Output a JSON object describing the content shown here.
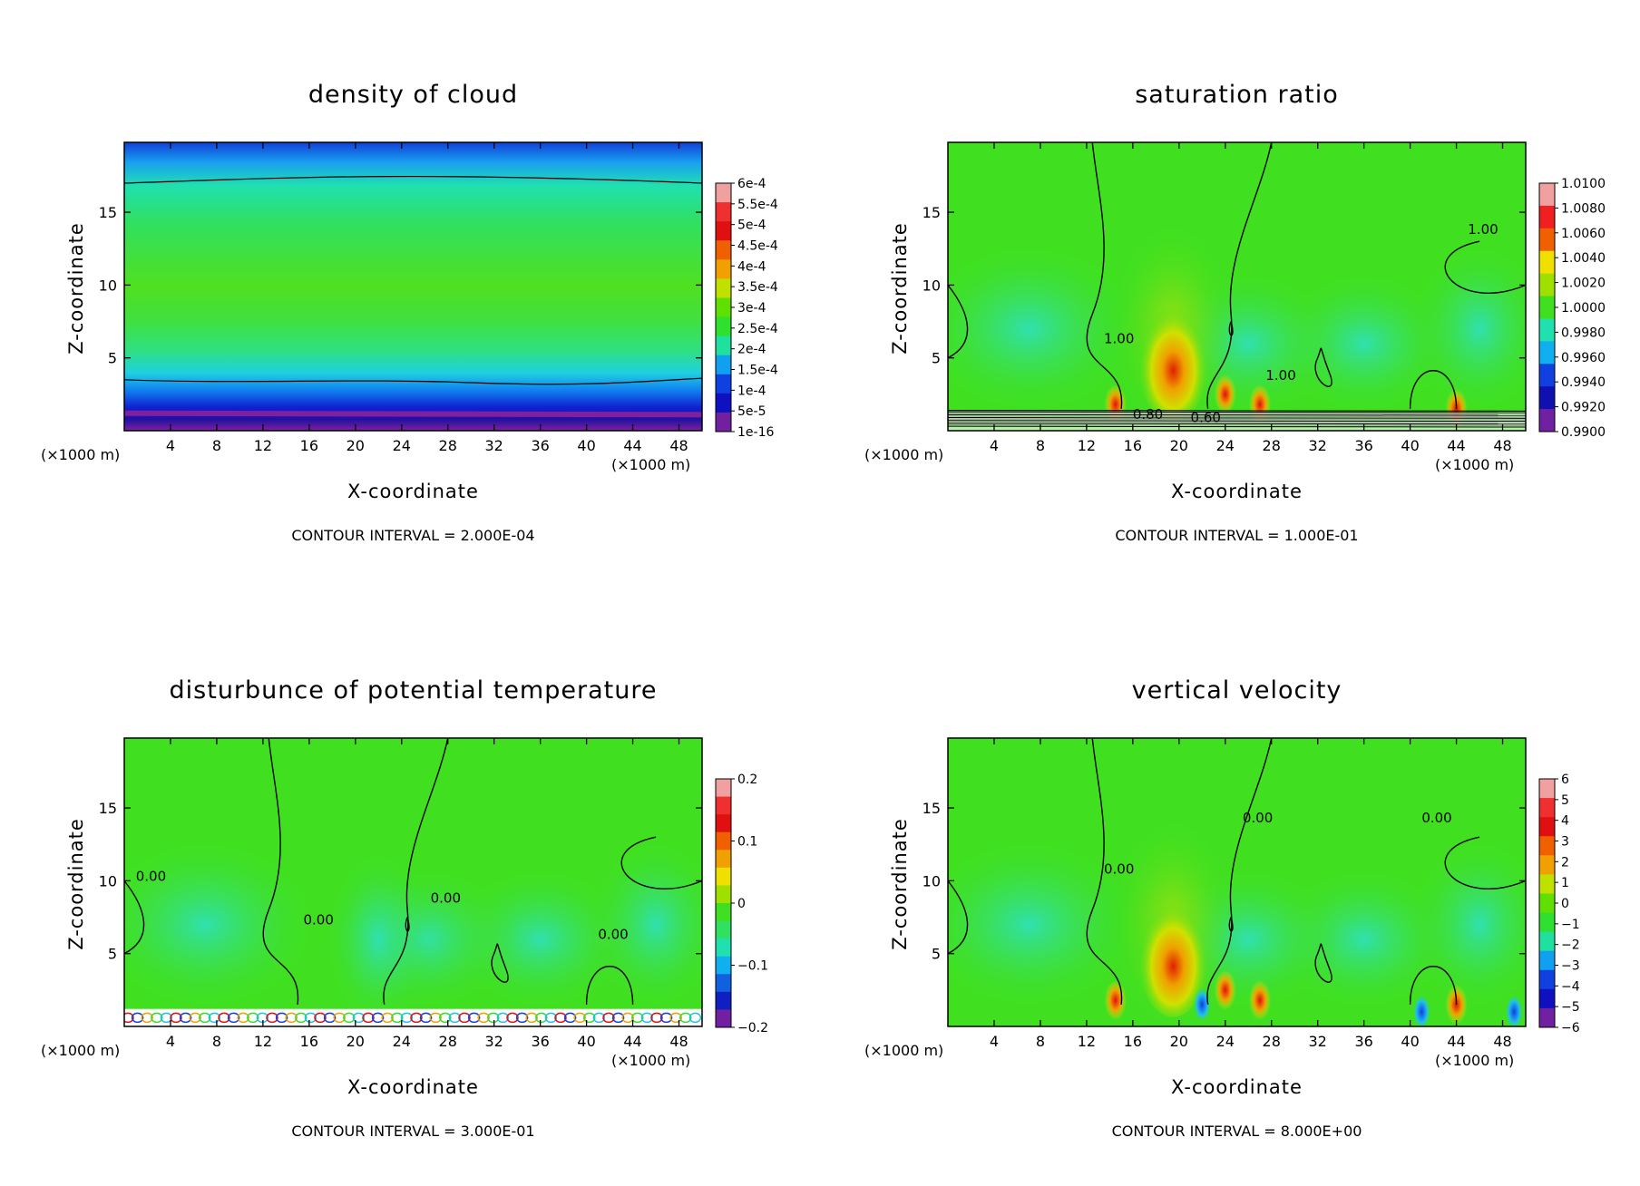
{
  "figure": {
    "charts": [
      {
        "title": "density of cloud",
        "xlabel": "X-coordinate",
        "ylabel": "Z-coordinate",
        "x_unit": "(×1000 m)",
        "z_unit": "(×1000 m)",
        "contour_interval": "CONTOUR INTERVAL = 2.000E-04",
        "colorbar_labels": [
          "6e-4",
          "5.5e-4",
          "5e-4",
          "4.5e-4",
          "4e-4",
          "3.5e-4",
          "3e-4",
          "2.5e-4",
          "2e-4",
          "1.5e-4",
          "1e-4",
          "5e-5",
          "1e-16"
        ]
      },
      {
        "title": "saturation ratio",
        "xlabel": "X-coordinate",
        "ylabel": "Z-coordinate",
        "x_unit": "(×1000 m)",
        "z_unit": "(×1000 m)",
        "contour_interval": "CONTOUR INTERVAL = 1.000E-01",
        "colorbar_labels": [
          "1.0100",
          "1.0080",
          "1.0060",
          "1.0040",
          "1.0020",
          "1.0000",
          "0.9980",
          "0.9960",
          "0.9940",
          "0.9920",
          "0.9900"
        ],
        "contour_labels": [
          "1.00",
          "1.00",
          "1.00",
          "0.80",
          "0.60"
        ]
      },
      {
        "title": "disturbunce of potential temperature",
        "xlabel": "X-coordinate",
        "ylabel": "Z-coordinate",
        "x_unit": "(×1000 m)",
        "z_unit": "(×1000 m)",
        "contour_interval": "CONTOUR INTERVAL = 3.000E-01",
        "colorbar_labels": [
          "0.2",
          "0.1",
          "0",
          "−0.1",
          "−0.2"
        ],
        "contour_labels": [
          "0.00",
          "0.00",
          "0.00",
          "0.00"
        ]
      },
      {
        "title": "vertical velocity",
        "xlabel": "X-coordinate",
        "ylabel": "Z-coordinate",
        "x_unit": "(×1000 m)",
        "z_unit": "(×1000 m)",
        "contour_interval": "CONTOUR INTERVAL = 8.000E+00",
        "colorbar_labels": [
          "6",
          "5",
          "4",
          "3",
          "2",
          "1",
          "0",
          "−1",
          "−2",
          "−3",
          "−4",
          "−5",
          "−6"
        ],
        "contour_labels": [
          "0.00",
          "0.00",
          "0.00"
        ]
      }
    ]
  },
  "chart_data": [
    {
      "type": "heatmap",
      "title": "density of cloud",
      "xlabel": "X-coordinate",
      "ylabel": "Z-coordinate",
      "x_ticks": [
        4,
        8,
        12,
        16,
        20,
        24,
        28,
        32,
        36,
        40,
        44,
        48
      ],
      "y_ticks": [
        5,
        10,
        15
      ],
      "xlim": [
        0,
        50
      ],
      "ylim": [
        0,
        19.8
      ],
      "colorbar": [
        0.0006,
        0.00055,
        0.0005,
        0.00045,
        0.0004,
        0.00035,
        0.0003,
        0.00025,
        0.0002,
        0.00015,
        0.0001,
        5e-05,
        1e-16
      ],
      "contour_interval": 0.0002
    },
    {
      "type": "heatmap",
      "title": "saturation ratio",
      "xlabel": "X-coordinate",
      "ylabel": "Z-coordinate",
      "x_ticks": [
        4,
        8,
        12,
        16,
        20,
        24,
        28,
        32,
        36,
        40,
        44,
        48
      ],
      "y_ticks": [
        5,
        10,
        15
      ],
      "xlim": [
        0,
        50
      ],
      "ylim": [
        0,
        19.8
      ],
      "colorbar": [
        1.01,
        1.008,
        1.006,
        1.004,
        1.002,
        1.0,
        0.998,
        0.996,
        0.994,
        0.992,
        0.99
      ],
      "contour_interval": 0.1
    },
    {
      "type": "heatmap",
      "title": "disturbunce of potential temperature",
      "xlabel": "X-coordinate",
      "ylabel": "Z-coordinate",
      "x_ticks": [
        4,
        8,
        12,
        16,
        20,
        24,
        28,
        32,
        36,
        40,
        44,
        48
      ],
      "y_ticks": [
        5,
        10,
        15
      ],
      "xlim": [
        0,
        50
      ],
      "ylim": [
        0,
        19.8
      ],
      "colorbar": [
        0.2,
        0.1,
        0,
        -0.1,
        -0.2
      ],
      "contour_interval": 0.3
    },
    {
      "type": "heatmap",
      "title": "vertical velocity",
      "xlabel": "X-coordinate",
      "ylabel": "Z-coordinate",
      "x_ticks": [
        4,
        8,
        12,
        16,
        20,
        24,
        28,
        32,
        36,
        40,
        44,
        48
      ],
      "y_ticks": [
        5,
        10,
        15
      ],
      "xlim": [
        0,
        50
      ],
      "ylim": [
        0,
        19.8
      ],
      "colorbar": [
        6,
        5,
        4,
        3,
        2,
        1,
        0,
        -1,
        -2,
        -3,
        -4,
        -5,
        -6
      ],
      "contour_interval": 8.0
    }
  ]
}
